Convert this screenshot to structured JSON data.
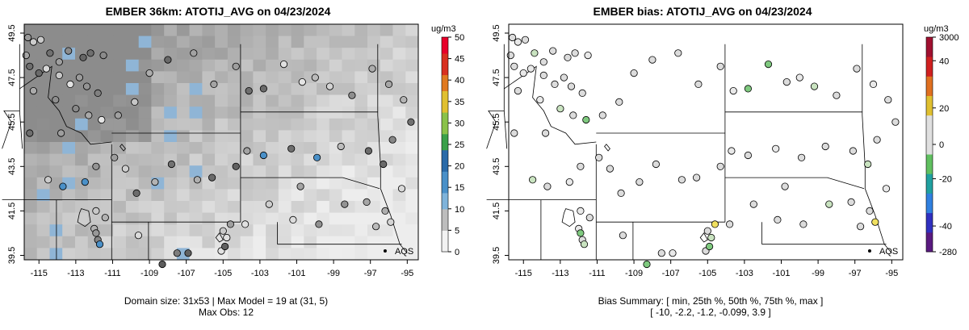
{
  "left": {
    "title": "EMBER 36km: ATOTIJ_AVG on 04/23/2024",
    "unit": "ug/m3",
    "colorbar_ticks": [
      "0",
      "5",
      "10",
      "15",
      "20",
      "25",
      "30",
      "35",
      "40",
      "45",
      "50"
    ],
    "x_ticks": [
      "-115",
      "-113",
      "-111",
      "-109",
      "-107",
      "-105",
      "-103",
      "-101",
      "-99",
      "-97",
      "-95"
    ],
    "y_ticks": [
      "39.5",
      "41.5",
      "43.5",
      "45.5",
      "47.5",
      "49.5"
    ],
    "station_label": "AQS",
    "caption_line1": "Domain size: 31x53 | Max Model = 19 at (31, 5)",
    "caption_line2": "Max Obs: 12"
  },
  "right": {
    "title": "EMBER bias: ATOTIJ_AVG on 04/23/2024",
    "unit": "ug/m3",
    "colorbar_ticks": [
      "-280",
      "-40",
      "-20",
      "0",
      "20",
      "40",
      "3000"
    ],
    "x_ticks": [
      "-115",
      "-113",
      "-111",
      "-109",
      "-107",
      "-105",
      "-103",
      "-101",
      "-99",
      "-97",
      "-95"
    ],
    "y_ticks": [
      "39.5",
      "41.5",
      "43.5",
      "45.5",
      "47.5",
      "49.5"
    ],
    "station_label": "AQS",
    "caption_line1": "Bias Summary: [ min, 25th %, 50th %, 75th %, max ]",
    "caption_line2": "[ -10,  -2.2,  -1.2,  -0.099,  3.9 ]"
  },
  "colors": {
    "low_gray": "#e8e8e8",
    "mid_gray": "#a9a9a9",
    "blue": "#3b8fd0",
    "bias_neutral": "#dcdcdc",
    "bias_green": "#7fc97f",
    "bias_yellow": "#f0e060"
  }
}
